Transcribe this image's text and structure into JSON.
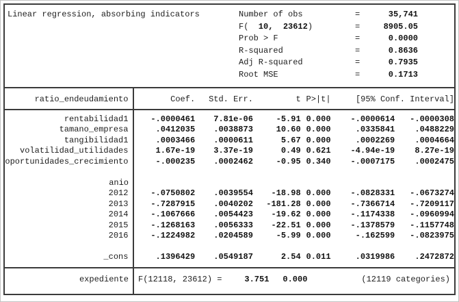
{
  "title": "Linear regression, absorbing indicators",
  "stats": [
    {
      "pre": "Number of obs",
      "bold": "",
      "post": "",
      "eq": "=",
      "value": "35,741"
    },
    {
      "pre": "F(",
      "bold": "  10,  23612",
      "post": ")",
      "eq": "=",
      "value": "8905.05"
    },
    {
      "pre": "Prob > F",
      "bold": "",
      "post": "",
      "eq": "=",
      "value": "0.0000"
    },
    {
      "pre": "R-squared",
      "bold": "",
      "post": "",
      "eq": "=",
      "value": "0.8636"
    },
    {
      "pre": "Adj R-squared",
      "bold": "",
      "post": "",
      "eq": "=",
      "value": "0.7935"
    },
    {
      "pre": "Root MSE",
      "bold": "",
      "post": "",
      "eq": "=",
      "value": "0.1713"
    }
  ],
  "table": {
    "depvar": "ratio_endeudamiento",
    "headers": {
      "coef": "Coef.",
      "stderr": "Std. Err.",
      "t": "t",
      "p": "P>|t|",
      "ci": "[95% Conf. Interval]"
    },
    "rows": [
      {
        "name": "rentabilidad1",
        "coef": "-.0000461",
        "stderr": "7.81e-06",
        "t": "-5.91",
        "p": "0.000",
        "lo": "-.0000614",
        "hi": "-.0000308"
      },
      {
        "name": "tamano_empresa",
        "coef": ".0412035",
        "stderr": ".0038873",
        "t": "10.60",
        "p": "0.000",
        "lo": ".0335841",
        "hi": ".0488229"
      },
      {
        "name": "tangibilidad1",
        "coef": ".0003466",
        "stderr": ".0000611",
        "t": "5.67",
        "p": "0.000",
        "lo": ".0002269",
        "hi": ".0004664"
      },
      {
        "name": "volatilidad_utilidades",
        "coef": "1.67e-19",
        "stderr": "3.37e-19",
        "t": "0.49",
        "p": "0.621",
        "lo": "-4.94e-19",
        "hi": "8.27e-19"
      },
      {
        "name": "oportunidades_crecimiento",
        "coef": "-.000235",
        "stderr": ".0002462",
        "t": "-0.95",
        "p": "0.340",
        "lo": "-.0007175",
        "hi": ".0002475"
      },
      {
        "name": ""
      },
      {
        "name": "anio"
      },
      {
        "name": "2012",
        "coef": "-.0750802",
        "stderr": ".0039554",
        "t": "-18.98",
        "p": "0.000",
        "lo": "-.0828331",
        "hi": "-.0673274"
      },
      {
        "name": "2013",
        "coef": "-.7287915",
        "stderr": ".0040202",
        "t": "-181.28",
        "p": "0.000",
        "lo": "-.7366714",
        "hi": "-.7209117"
      },
      {
        "name": "2014",
        "coef": "-.1067666",
        "stderr": ".0054423",
        "t": "-19.62",
        "p": "0.000",
        "lo": "-.1174338",
        "hi": "-.0960994"
      },
      {
        "name": "2015",
        "coef": "-.1268163",
        "stderr": ".0056333",
        "t": "-22.51",
        "p": "0.000",
        "lo": "-.1378579",
        "hi": "-.1157748"
      },
      {
        "name": "2016",
        "coef": "-.1224982",
        "stderr": ".0204589",
        "t": "-5.99",
        "p": "0.000",
        "lo": "-.162599",
        "hi": "-.0823975"
      },
      {
        "name": ""
      },
      {
        "name": "_cons",
        "coef": ".1396429",
        "stderr": ".0549187",
        "t": "2.54",
        "p": "0.011",
        "lo": ".0319986",
        "hi": ".2472872"
      }
    ]
  },
  "absorbed": {
    "name": "expediente",
    "fstat": "F(12118, 23612) =",
    "value": "3.751",
    "p": "0.000",
    "categories": "(12119 categories)"
  }
}
